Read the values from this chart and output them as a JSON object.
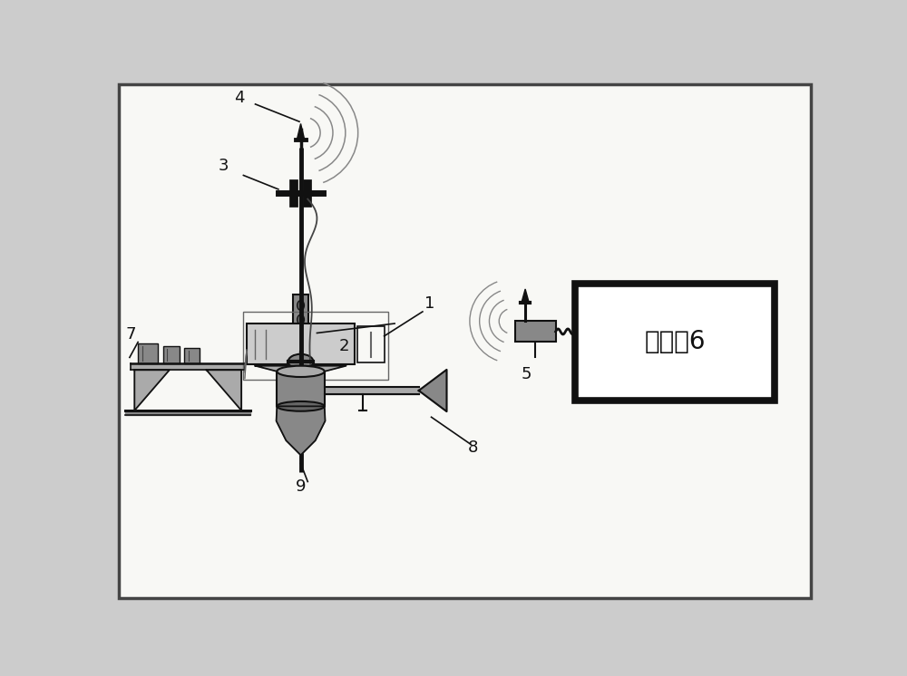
{
  "bg_color": "#cccccc",
  "inner_bg": "#f8f8f5",
  "border_color": "#444444",
  "label_4": "4",
  "label_3": "3",
  "label_2": "2",
  "label_1": "1",
  "label_5": "5",
  "label_6": "上位机6",
  "label_7": "7",
  "label_8": "8",
  "label_9": "9",
  "dark": "#111111",
  "g1": "#444444",
  "g2": "#666666",
  "g3": "#888888",
  "g4": "#aaaaaa",
  "g5": "#cccccc",
  "wire_color": "#555555"
}
